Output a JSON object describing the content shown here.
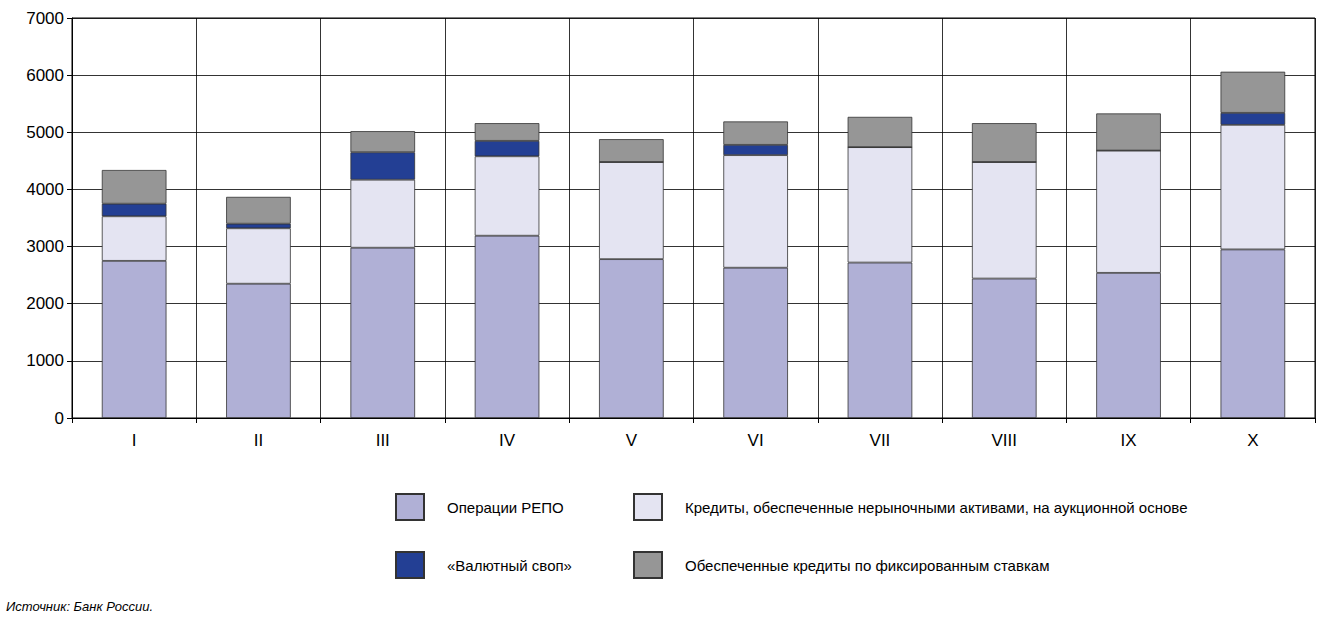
{
  "chart_data": {
    "type": "bar",
    "stacked": true,
    "grid": true,
    "categories": [
      "I",
      "II",
      "III",
      "IV",
      "V",
      "VI",
      "VII",
      "VIII",
      "IX",
      "X"
    ],
    "series": [
      {
        "name": "Операции РЕПО",
        "color": "#b0b0d6",
        "values": [
          2750,
          2350,
          2980,
          3190,
          2780,
          2630,
          2720,
          2440,
          2540,
          2950
        ]
      },
      {
        "name": "Кредиты, обеспеченные нерыночными активами, на аукционной основе",
        "color": "#e4e4f2",
        "values": [
          780,
          970,
          1190,
          1390,
          1700,
          1970,
          2020,
          2040,
          2140,
          2180
        ]
      },
      {
        "name": "«Валютный своп»",
        "color": "#233f94",
        "values": [
          220,
          80,
          480,
          270,
          0,
          180,
          0,
          0,
          0,
          210
        ]
      },
      {
        "name": "Обеспеченные кредиты по фиксированным ставкам",
        "color": "#969696",
        "values": [
          590,
          470,
          370,
          310,
          400,
          410,
          530,
          680,
          650,
          720
        ]
      }
    ],
    "ylim": [
      0,
      7000
    ],
    "yticks": [
      0,
      1000,
      2000,
      3000,
      4000,
      5000,
      6000,
      7000
    ],
    "annotations": [
      "Источник: Банк России."
    ]
  }
}
